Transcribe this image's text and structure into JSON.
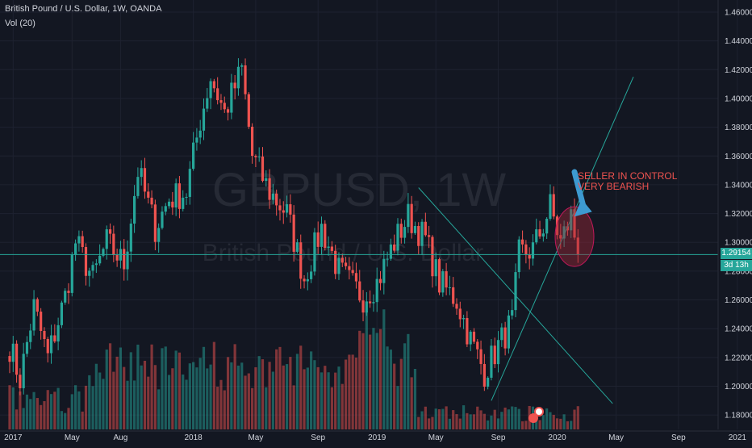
{
  "header": {
    "title": "British Pound / U.S. Dollar, 1W, OANDA",
    "volume_label": "Vol (20)"
  },
  "watermark": {
    "symbol": "GBPUSD, 1W",
    "name": "British Pound / U.S. Dollar"
  },
  "annotation": {
    "line1": "SELLER IN CONTROL",
    "line2": "VERY BEARISH"
  },
  "last_price": "1.29154",
  "countdown": "3d 13h",
  "colors": {
    "background": "#131722",
    "bull": "#26a69a",
    "bear": "#ef5350",
    "annotation": "#ef5350",
    "arrow": "#3d9ad1",
    "trendline": "#26a69a",
    "text": "#d1d4dc"
  },
  "chart_data": {
    "type": "candlestick",
    "timeframe": "1W",
    "ylim": [
      1.17,
      1.46
    ],
    "y_ticks": [
      "1.46000",
      "1.44000",
      "1.42000",
      "1.40000",
      "1.38000",
      "1.36000",
      "1.34000",
      "1.32000",
      "1.30000",
      "1.28000",
      "1.26000",
      "1.24000",
      "1.22000",
      "1.20000",
      "1.18000"
    ],
    "x_ticks": [
      "2017",
      "May",
      "Aug",
      "2018",
      "May",
      "Sep",
      "2019",
      "May",
      "Sep",
      "2020",
      "May",
      "Sep",
      "2021"
    ],
    "price_path": [
      [
        "2016-12-26",
        1.228
      ],
      [
        "2017-01-16",
        1.205
      ],
      [
        "2017-02-13",
        1.255
      ],
      [
        "2017-03-13",
        1.22
      ],
      [
        "2017-04-17",
        1.262
      ],
      [
        "2017-05-08",
        1.3
      ],
      [
        "2017-06-12",
        1.275
      ],
      [
        "2017-07-10",
        1.3
      ],
      [
        "2017-08-14",
        1.285
      ],
      [
        "2017-09-11",
        1.35
      ],
      [
        "2017-10-16",
        1.31
      ],
      [
        "2017-11-13",
        1.33
      ],
      [
        "2017-12-18",
        1.335
      ],
      [
        "2018-01-15",
        1.385
      ],
      [
        "2018-02-05",
        1.415
      ],
      [
        "2018-03-05",
        1.39
      ],
      [
        "2018-04-09",
        1.42
      ],
      [
        "2018-04-30",
        1.36
      ],
      [
        "2018-06-04",
        1.335
      ],
      [
        "2018-07-09",
        1.32
      ],
      [
        "2018-08-13",
        1.275
      ],
      [
        "2018-09-17",
        1.31
      ],
      [
        "2018-10-22",
        1.28
      ],
      [
        "2018-12-10",
        1.262
      ],
      [
        "2019-01-07",
        1.272
      ],
      [
        "2019-02-11",
        1.3
      ],
      [
        "2019-03-11",
        1.318
      ],
      [
        "2019-04-15",
        1.302
      ],
      [
        "2019-05-13",
        1.272
      ],
      [
        "2019-06-17",
        1.26
      ],
      [
        "2019-07-15",
        1.232
      ],
      [
        "2019-08-12",
        1.21
      ],
      [
        "2019-09-09",
        1.228
      ],
      [
        "2019-10-07",
        1.245
      ],
      [
        "2019-10-21",
        1.292
      ],
      [
        "2019-11-18",
        1.295
      ],
      [
        "2019-12-09",
        1.312
      ],
      [
        "2019-12-23",
        1.325
      ],
      [
        "2020-01-13",
        1.3
      ],
      [
        "2020-02-03",
        1.318
      ],
      [
        "2020-02-17",
        1.292
      ]
    ],
    "last_close": 1.29154,
    "series": [
      {
        "name": "Vol (20)",
        "type": "volume"
      }
    ],
    "trendlines": [
      {
        "from": [
          "2019-04-01",
          1.338
        ],
        "to": [
          "2020-04-27",
          1.188
        ]
      },
      {
        "from": [
          "2019-08-26",
          1.19
        ],
        "to": [
          "2020-06-08",
          1.415
        ]
      }
    ],
    "horizontal_lines": [
      1.29154
    ],
    "ellipse_center": [
      "2020-02-10",
      1.304
    ],
    "arrow_target": [
      "2020-02-03",
      1.319
    ],
    "grid": true
  }
}
